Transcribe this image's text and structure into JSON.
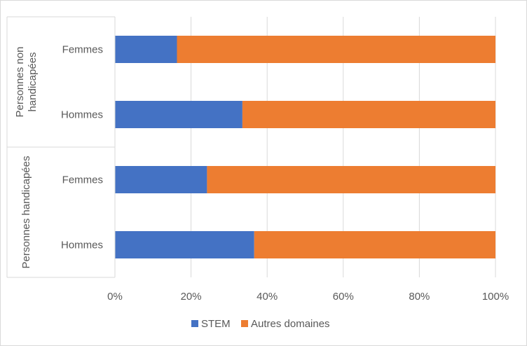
{
  "chart_data": {
    "type": "bar",
    "orientation": "horizontal",
    "stacked": "percent",
    "groups": [
      {
        "label": "Personnes non handicapées",
        "label_lines": [
          "Personnes non",
          "handicapées"
        ],
        "categories": [
          "Femmes",
          "Hommes"
        ]
      },
      {
        "label": "Personnes handicapées",
        "label_lines": [
          "Personnes handicapées"
        ],
        "categories": [
          "Femmes",
          "Hommes"
        ]
      }
    ],
    "categories": [
      "Personnes non handicapées - Femmes",
      "Personnes non handicapées - Hommes",
      "Personnes handicapées - Femmes",
      "Personnes handicapées - Hommes"
    ],
    "series": [
      {
        "name": "STEM",
        "color": "#4472c4",
        "values": [
          16.3,
          33.5,
          24.2,
          36.6
        ]
      },
      {
        "name": "Autres domaines",
        "color": "#ed7d31",
        "values": [
          83.7,
          66.5,
          75.8,
          63.4
        ]
      }
    ],
    "xlim": [
      0,
      100
    ],
    "xticks": [
      "0%",
      "20%",
      "40%",
      "60%",
      "80%",
      "100%"
    ],
    "grid": true,
    "legend_position": "bottom",
    "title": "",
    "xlabel": "",
    "ylabel": ""
  }
}
